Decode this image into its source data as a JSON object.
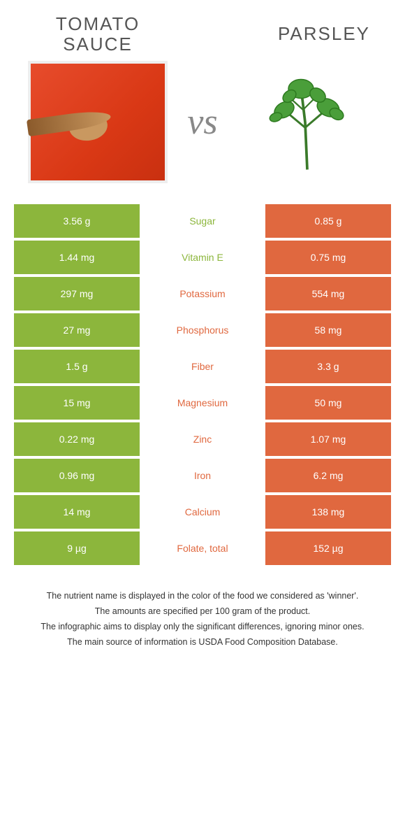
{
  "colors": {
    "left_food": "#8cb63c",
    "right_food": "#e0683f",
    "background": "#ffffff",
    "text": "#333333",
    "vs": "#888888"
  },
  "foods": {
    "left": {
      "name": "TOMATO SAUCE"
    },
    "right": {
      "name": "Parsley"
    }
  },
  "vs_label": "vs",
  "rows": [
    {
      "left": "3.56 g",
      "label": "Sugar",
      "right": "0.85 g",
      "winner": "left"
    },
    {
      "left": "1.44 mg",
      "label": "Vitamin E",
      "right": "0.75 mg",
      "winner": "left"
    },
    {
      "left": "297 mg",
      "label": "Potassium",
      "right": "554 mg",
      "winner": "right"
    },
    {
      "left": "27 mg",
      "label": "Phosphorus",
      "right": "58 mg",
      "winner": "right"
    },
    {
      "left": "1.5 g",
      "label": "Fiber",
      "right": "3.3 g",
      "winner": "right"
    },
    {
      "left": "15 mg",
      "label": "Magnesium",
      "right": "50 mg",
      "winner": "right"
    },
    {
      "left": "0.22 mg",
      "label": "Zinc",
      "right": "1.07 mg",
      "winner": "right"
    },
    {
      "left": "0.96 mg",
      "label": "Iron",
      "right": "6.2 mg",
      "winner": "right"
    },
    {
      "left": "14 mg",
      "label": "Calcium",
      "right": "138 mg",
      "winner": "right"
    },
    {
      "left": "9 µg",
      "label": "Folate, total",
      "right": "152 µg",
      "winner": "right"
    }
  ],
  "footer": {
    "line1": "The nutrient name is displayed in the color of the food we considered as 'winner'.",
    "line2": "The amounts are specified per 100 gram of the product.",
    "line3": "The infographic aims to display only the significant differences, ignoring minor ones.",
    "line4": "The main source of information is USDA Food Composition Database."
  }
}
